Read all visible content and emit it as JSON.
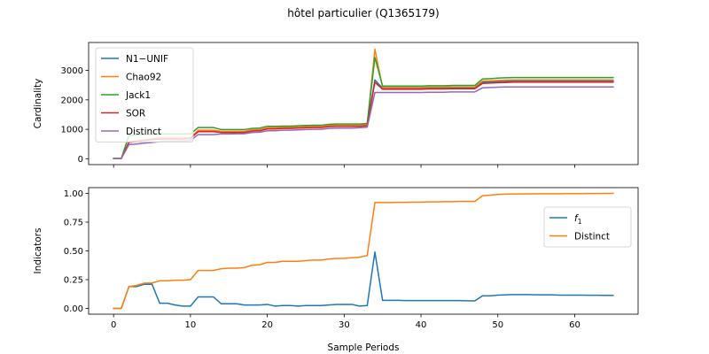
{
  "title": "hôtel particulier (Q1365179)",
  "chart_data": [
    {
      "type": "line",
      "xlabel": "",
      "ylabel": "Cardinality",
      "xlim": [
        -3.25,
        68.25
      ],
      "ylim": [
        -200,
        3950
      ],
      "xticks": [
        0,
        10,
        20,
        30,
        40,
        50,
        60
      ],
      "yticks": [
        0,
        1000,
        2000,
        3000
      ],
      "show_xtick_labels": false,
      "legend_position": "upper-left",
      "x": [
        0,
        1,
        2,
        3,
        4,
        5,
        6,
        7,
        8,
        9,
        10,
        11,
        12,
        13,
        14,
        15,
        16,
        17,
        18,
        19,
        20,
        21,
        22,
        23,
        24,
        25,
        26,
        27,
        28,
        29,
        30,
        31,
        32,
        33,
        34,
        35,
        36,
        37,
        38,
        39,
        40,
        41,
        42,
        43,
        44,
        45,
        46,
        47,
        48,
        49,
        50,
        51,
        52,
        53,
        54,
        55,
        56,
        57,
        58,
        59,
        60,
        61,
        62,
        63,
        64,
        65
      ],
      "series": [
        {
          "name": "N1−UNIF",
          "color": "#1f77b4",
          "values": [
            5,
            5,
            560,
            590,
            620,
            660,
            670,
            680,
            680,
            680,
            690,
            930,
            930,
            930,
            900,
            900,
            900,
            900,
            950,
            960,
            1020,
            1020,
            1040,
            1040,
            1050,
            1060,
            1070,
            1070,
            1100,
            1110,
            1110,
            1110,
            1110,
            1130,
            2680,
            2390,
            2390,
            2390,
            2390,
            2390,
            2390,
            2400,
            2400,
            2400,
            2410,
            2410,
            2410,
            2410,
            2600,
            2610,
            2620,
            2630,
            2640,
            2640,
            2640,
            2640,
            2640,
            2640,
            2640,
            2640,
            2640,
            2640,
            2640,
            2640,
            2640,
            2640
          ]
        },
        {
          "name": "Chao92",
          "color": "#ff7f0e",
          "values": [
            5,
            5,
            580,
            610,
            640,
            680,
            700,
            700,
            700,
            700,
            710,
            970,
            970,
            970,
            930,
            930,
            930,
            930,
            980,
            990,
            1050,
            1050,
            1070,
            1070,
            1080,
            1090,
            1100,
            1100,
            1130,
            1140,
            1140,
            1140,
            1140,
            1160,
            3720,
            2420,
            2420,
            2420,
            2420,
            2420,
            2420,
            2430,
            2430,
            2430,
            2440,
            2440,
            2440,
            2440,
            2640,
            2650,
            2660,
            2670,
            2680,
            2680,
            2680,
            2680,
            2680,
            2680,
            2680,
            2680,
            2680,
            2680,
            2680,
            2680,
            2680,
            2680
          ]
        },
        {
          "name": "Jack1",
          "color": "#2ca02c",
          "values": [
            5,
            5,
            800,
            810,
            820,
            830,
            840,
            840,
            840,
            840,
            840,
            1060,
            1060,
            1060,
            990,
            990,
            990,
            990,
            1030,
            1040,
            1100,
            1100,
            1110,
            1110,
            1120,
            1130,
            1140,
            1140,
            1170,
            1180,
            1180,
            1180,
            1180,
            1200,
            3440,
            2470,
            2470,
            2470,
            2470,
            2470,
            2470,
            2480,
            2480,
            2480,
            2490,
            2490,
            2490,
            2490,
            2710,
            2720,
            2740,
            2750,
            2760,
            2760,
            2760,
            2760,
            2760,
            2760,
            2760,
            2760,
            2760,
            2760,
            2760,
            2760,
            2760,
            2760
          ]
        },
        {
          "name": "SOR",
          "color": "#d62728",
          "values": [
            5,
            5,
            560,
            590,
            620,
            650,
            670,
            670,
            670,
            670,
            690,
            920,
            920,
            920,
            890,
            890,
            890,
            890,
            940,
            950,
            1010,
            1010,
            1030,
            1030,
            1040,
            1050,
            1060,
            1060,
            1090,
            1100,
            1100,
            1100,
            1100,
            1120,
            2600,
            2360,
            2360,
            2360,
            2360,
            2360,
            2360,
            2370,
            2370,
            2370,
            2380,
            2380,
            2380,
            2380,
            2560,
            2570,
            2580,
            2590,
            2600,
            2600,
            2600,
            2600,
            2600,
            2600,
            2600,
            2600,
            2600,
            2600,
            2600,
            2600,
            2600,
            2600
          ]
        },
        {
          "name": "Distinct",
          "color": "#9467bd",
          "values": [
            5,
            5,
            480,
            500,
            530,
            550,
            580,
            600,
            600,
            600,
            620,
            820,
            820,
            820,
            840,
            840,
            850,
            850,
            890,
            900,
            950,
            950,
            970,
            970,
            980,
            990,
            1000,
            1000,
            1030,
            1040,
            1040,
            1040,
            1050,
            1070,
            2250,
            2250,
            2250,
            2250,
            2250,
            2250,
            2250,
            2260,
            2260,
            2260,
            2270,
            2270,
            2270,
            2270,
            2410,
            2420,
            2430,
            2440,
            2440,
            2440,
            2440,
            2440,
            2440,
            2440,
            2440,
            2440,
            2440,
            2440,
            2440,
            2440,
            2440,
            2440
          ]
        }
      ]
    },
    {
      "type": "line",
      "xlabel": "Sample Periods",
      "ylabel": "Indicators",
      "xlim": [
        -3.25,
        68.25
      ],
      "ylim": [
        -0.05,
        1.05
      ],
      "xticks": [
        0,
        10,
        20,
        30,
        40,
        50,
        60
      ],
      "yticks": [
        0.0,
        0.25,
        0.5,
        0.75,
        1.0
      ],
      "ytick_labels": [
        "0.00",
        "0.25",
        "0.50",
        "0.75",
        "1.00"
      ],
      "show_xtick_labels": true,
      "legend_position": "upper-right",
      "x": [
        0,
        1,
        2,
        3,
        4,
        5,
        6,
        7,
        8,
        9,
        10,
        11,
        12,
        13,
        14,
        15,
        16,
        17,
        18,
        19,
        20,
        21,
        22,
        23,
        24,
        25,
        26,
        27,
        28,
        29,
        30,
        31,
        32,
        33,
        34,
        35,
        36,
        37,
        38,
        39,
        40,
        41,
        42,
        43,
        44,
        45,
        46,
        47,
        48,
        49,
        50,
        51,
        52,
        53,
        54,
        55,
        56,
        57,
        58,
        59,
        60,
        61,
        62,
        63,
        64,
        65
      ],
      "series": [
        {
          "name": "f₁",
          "name_parts": [
            "f",
            "1"
          ],
          "color": "#1f77b4",
          "values": [
            0.0,
            0.0,
            0.19,
            0.19,
            0.21,
            0.21,
            0.045,
            0.045,
            0.03,
            0.02,
            0.02,
            0.1,
            0.1,
            0.1,
            0.04,
            0.04,
            0.04,
            0.03,
            0.03,
            0.03,
            0.035,
            0.02,
            0.025,
            0.025,
            0.02,
            0.025,
            0.025,
            0.025,
            0.03,
            0.035,
            0.035,
            0.035,
            0.02,
            0.025,
            0.49,
            0.07,
            0.07,
            0.07,
            0.068,
            0.068,
            0.068,
            0.068,
            0.068,
            0.068,
            0.068,
            0.068,
            0.066,
            0.065,
            0.11,
            0.11,
            0.115,
            0.118,
            0.12,
            0.12,
            0.12,
            0.118,
            0.118,
            0.118,
            0.115,
            0.115,
            0.115,
            0.115,
            0.114,
            0.114,
            0.113,
            0.113
          ]
        },
        {
          "name": "Distinct",
          "color": "#ff7f0e",
          "values": [
            0.0,
            0.0,
            0.19,
            0.2,
            0.22,
            0.22,
            0.24,
            0.24,
            0.245,
            0.245,
            0.25,
            0.33,
            0.33,
            0.33,
            0.345,
            0.35,
            0.35,
            0.355,
            0.375,
            0.38,
            0.4,
            0.4,
            0.41,
            0.41,
            0.41,
            0.415,
            0.42,
            0.42,
            0.43,
            0.435,
            0.435,
            0.44,
            0.445,
            0.46,
            0.92,
            0.92,
            0.92,
            0.922,
            0.922,
            0.924,
            0.924,
            0.926,
            0.926,
            0.928,
            0.928,
            0.93,
            0.93,
            0.93,
            0.98,
            0.985,
            0.99,
            0.993,
            0.995,
            0.995,
            0.996,
            0.996,
            0.997,
            0.997,
            0.997,
            0.998,
            0.998,
            0.998,
            0.999,
            0.999,
            1.0,
            1.0
          ]
        }
      ]
    }
  ]
}
